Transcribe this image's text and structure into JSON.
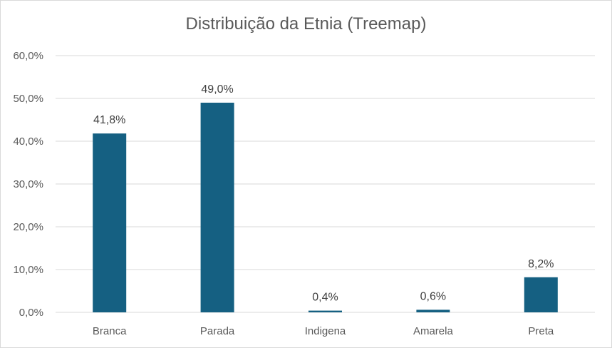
{
  "chart_data": {
    "type": "bar",
    "title": "Distribuição da Etnia (Treemap)",
    "categories": [
      "Branca",
      "Parada",
      "Indigena",
      "Amarela",
      "Preta"
    ],
    "values": [
      41.8,
      49.0,
      0.4,
      0.6,
      8.2
    ],
    "data_labels": [
      "41,8%",
      "49,0%",
      "0,4%",
      "0,6%",
      "8,2%"
    ],
    "ylim": [
      0,
      60
    ],
    "yticks": [
      0,
      10,
      20,
      30,
      40,
      50,
      60
    ],
    "ytick_labels": [
      "0,0%",
      "10,0%",
      "20,0%",
      "30,0%",
      "40,0%",
      "50,0%",
      "60,0%"
    ],
    "xlabel": "",
    "ylabel": "",
    "grid": true,
    "legend": "none",
    "bar_color": "#156082",
    "grid_color": "#d9d9d9"
  }
}
